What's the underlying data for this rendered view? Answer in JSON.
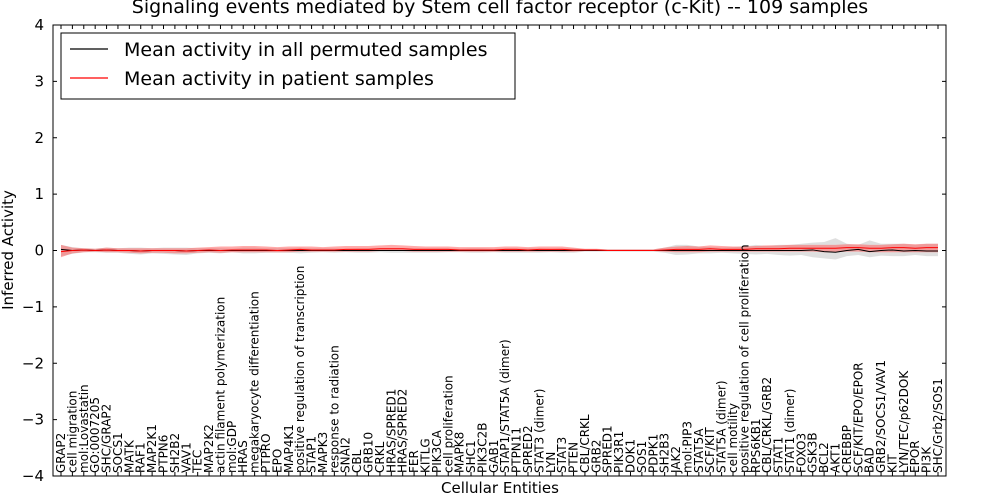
{
  "chart_data": {
    "type": "line",
    "title": "Signaling events mediated by Stem cell factor receptor (c-Kit) -- 109 samples",
    "xlabel": "Cellular Entities",
    "ylabel": "Inferred Activity",
    "ylim": [
      -4,
      4
    ],
    "yticks": [
      -4,
      -3,
      -2,
      -1,
      0,
      1,
      2,
      3,
      4
    ],
    "ytick_labels": [
      "−4",
      "−3",
      "−2",
      "−1",
      "0",
      "1",
      "2",
      "3",
      "4"
    ],
    "legend": {
      "placement": "top-left",
      "entries": [
        {
          "label": "Mean activity in all permuted samples",
          "color": "#000000"
        },
        {
          "label": "Mean activity in patient samples",
          "color": "#ff0000"
        }
      ]
    },
    "categories": [
      "GRAP2",
      "cell migration",
      "mol:Lovastatin",
      "GO:0007205",
      "SHC/GRAP2",
      "SOCS1",
      "MATK",
      "RAF1",
      "MAP2K1",
      "PTPN6",
      "SH2B2",
      "VAV1",
      "TEC",
      "MAP2K2",
      "actin filament polymerization",
      "mol:GDP",
      "HRAS",
      "megakaryocyte differentiation",
      "PTPRO",
      "EPO",
      "MAP4K1",
      "positive regulation of transcription",
      "STAP1",
      "MAPK3",
      "response to radiation",
      "SNAI2",
      "CBL",
      "GRB10",
      "CRKL",
      "HRAS/SPRED1",
      "HRAS/SPRED2",
      "FER",
      "KITLG",
      "PIK3CA",
      "cell proliferation",
      "MAPK8",
      "SHC1",
      "PIK3C2B",
      "GAB1",
      "STAP1/STAT5A (dimer)",
      "PTPN11",
      "SPRED2",
      "STAT3 (dimer)",
      "LYN",
      "STAT3",
      "PTEN",
      "CBL/CRKL",
      "GRB2",
      "SPRED1",
      "PIK3R1",
      "DOK1",
      "SOS1",
      "PDPK1",
      "SH2B3",
      "JAK2",
      "mol:PIP3",
      "STAT5A",
      "SCF/KIT",
      "STAT5A (dimer)",
      "cell motility",
      "positive regulation of cell proliferation",
      "RPS6KB1",
      "CBL/CRKL/GRB2",
      "STAT1",
      "STAT1 (dimer)",
      "FOXO3",
      "GSK3B",
      "BCL2",
      "AKT1",
      "CREBBP",
      "SCF/KIT/EPO/EPOR",
      "BAD",
      "GRB2/SOCS1/VAV1",
      "KIT",
      "LYN/TEC/p62DOK",
      "EPOR",
      "PI3K",
      "SHC/Grb2/SOS1"
    ],
    "series": [
      {
        "name": "Mean activity in all permuted samples",
        "color": "#000000",
        "values": [
          0.02,
          0.0,
          0.01,
          0.0,
          0.01,
          0.0,
          0.0,
          -0.01,
          0.0,
          0.0,
          0.0,
          -0.01,
          0.0,
          0.0,
          0.0,
          0.0,
          0.0,
          0.0,
          0.0,
          0.0,
          0.0,
          0.0,
          0.0,
          0.0,
          0.0,
          0.0,
          0.0,
          0.0,
          0.0,
          0.0,
          0.0,
          0.0,
          0.0,
          0.0,
          0.0,
          0.0,
          0.0,
          0.0,
          0.0,
          0.0,
          0.0,
          0.0,
          0.0,
          0.0,
          0.0,
          0.0,
          0.0,
          0.0,
          0.0,
          0.0,
          0.0,
          0.0,
          0.0,
          0.0,
          0.0,
          0.0,
          0.0,
          0.0,
          0.0,
          0.0,
          0.0,
          0.0,
          0.0,
          0.0,
          0.0,
          0.0,
          0.01,
          -0.02,
          -0.03,
          0.0,
          0.02,
          -0.02,
          0.0,
          0.01,
          -0.01,
          0.0,
          -0.01,
          -0.01
        ],
        "band_low": [
          -0.1,
          -0.06,
          -0.03,
          -0.03,
          -0.04,
          -0.04,
          -0.06,
          -0.07,
          -0.05,
          -0.06,
          -0.07,
          -0.08,
          -0.05,
          -0.04,
          -0.05,
          -0.03,
          -0.05,
          -0.05,
          -0.04,
          -0.04,
          -0.04,
          -0.05,
          -0.04,
          -0.03,
          -0.04,
          -0.03,
          -0.04,
          -0.04,
          -0.03,
          -0.04,
          -0.04,
          -0.04,
          -0.04,
          -0.04,
          -0.03,
          -0.03,
          -0.04,
          -0.04,
          -0.03,
          -0.04,
          -0.04,
          -0.04,
          -0.04,
          -0.03,
          -0.04,
          -0.04,
          -0.02,
          -0.02,
          -0.02,
          -0.02,
          -0.02,
          -0.02,
          -0.02,
          -0.04,
          -0.08,
          -0.07,
          -0.05,
          -0.05,
          -0.04,
          -0.05,
          -0.06,
          -0.07,
          -0.06,
          -0.08,
          -0.09,
          -0.08,
          -0.12,
          -0.14,
          -0.16,
          -0.1,
          -0.08,
          -0.12,
          -0.09,
          -0.1,
          -0.1,
          -0.08,
          -0.1,
          -0.1
        ],
        "band_high": [
          0.1,
          0.06,
          0.04,
          0.03,
          0.05,
          0.04,
          0.05,
          0.05,
          0.04,
          0.05,
          0.05,
          0.05,
          0.04,
          0.04,
          0.04,
          0.03,
          0.05,
          0.05,
          0.04,
          0.04,
          0.04,
          0.05,
          0.04,
          0.04,
          0.04,
          0.03,
          0.04,
          0.04,
          0.04,
          0.04,
          0.04,
          0.04,
          0.04,
          0.04,
          0.04,
          0.03,
          0.04,
          0.04,
          0.03,
          0.04,
          0.04,
          0.04,
          0.04,
          0.03,
          0.04,
          0.04,
          0.02,
          0.02,
          0.02,
          0.02,
          0.02,
          0.02,
          0.02,
          0.05,
          0.1,
          0.1,
          0.07,
          0.06,
          0.05,
          0.06,
          0.07,
          0.1,
          0.08,
          0.1,
          0.1,
          0.12,
          0.14,
          0.15,
          0.22,
          0.12,
          0.1,
          0.18,
          0.12,
          0.12,
          0.12,
          0.1,
          0.12,
          0.12
        ]
      },
      {
        "name": "Mean activity in patient samples",
        "color": "#ff0000",
        "values": [
          -0.02,
          0.0,
          0.01,
          0.0,
          0.01,
          0.0,
          0.0,
          -0.01,
          0.0,
          0.0,
          0.0,
          -0.01,
          0.0,
          0.01,
          0.0,
          0.01,
          0.01,
          0.01,
          0.01,
          0.0,
          0.01,
          0.02,
          0.01,
          0.01,
          0.01,
          0.02,
          0.02,
          0.02,
          0.03,
          0.03,
          0.03,
          0.02,
          0.02,
          0.02,
          0.02,
          0.01,
          0.01,
          0.01,
          0.01,
          0.02,
          0.02,
          0.01,
          0.02,
          0.02,
          0.02,
          0.01,
          0.01,
          0.01,
          0.0,
          0.0,
          0.0,
          0.0,
          0.0,
          0.01,
          0.02,
          0.02,
          0.02,
          0.03,
          0.02,
          0.02,
          0.02,
          0.03,
          0.03,
          0.03,
          0.04,
          0.04,
          0.04,
          0.04,
          0.04,
          0.05,
          0.05,
          0.04,
          0.04,
          0.05,
          0.05,
          0.04,
          0.05,
          0.05
        ],
        "band_low": [
          -0.12,
          -0.05,
          -0.03,
          -0.02,
          -0.03,
          -0.03,
          -0.04,
          -0.05,
          -0.04,
          -0.04,
          -0.05,
          -0.05,
          -0.04,
          -0.03,
          -0.04,
          -0.03,
          -0.03,
          -0.03,
          -0.03,
          -0.03,
          -0.03,
          -0.02,
          -0.02,
          -0.02,
          -0.02,
          -0.02,
          -0.02,
          -0.02,
          -0.01,
          -0.01,
          -0.01,
          -0.02,
          -0.02,
          -0.02,
          -0.02,
          -0.02,
          -0.02,
          -0.02,
          -0.02,
          -0.02,
          -0.02,
          -0.02,
          -0.02,
          -0.02,
          -0.02,
          -0.02,
          -0.01,
          -0.01,
          -0.01,
          -0.01,
          -0.01,
          -0.01,
          -0.01,
          -0.02,
          -0.03,
          -0.03,
          -0.03,
          -0.02,
          -0.02,
          -0.02,
          -0.02,
          -0.02,
          -0.02,
          -0.02,
          -0.02,
          -0.02,
          -0.02,
          -0.03,
          -0.03,
          -0.02,
          -0.02,
          -0.03,
          -0.03,
          -0.03,
          -0.03,
          -0.03,
          -0.03,
          -0.03
        ],
        "band_high": [
          0.1,
          0.05,
          0.04,
          0.03,
          0.05,
          0.04,
          0.04,
          0.04,
          0.04,
          0.04,
          0.04,
          0.04,
          0.05,
          0.06,
          0.07,
          0.07,
          0.08,
          0.08,
          0.07,
          0.06,
          0.07,
          0.07,
          0.07,
          0.06,
          0.07,
          0.08,
          0.08,
          0.08,
          0.09,
          0.1,
          0.09,
          0.08,
          0.07,
          0.07,
          0.07,
          0.06,
          0.06,
          0.06,
          0.06,
          0.07,
          0.07,
          0.06,
          0.07,
          0.07,
          0.07,
          0.05,
          0.03,
          0.03,
          0.02,
          0.02,
          0.02,
          0.02,
          0.02,
          0.05,
          0.07,
          0.08,
          0.07,
          0.09,
          0.08,
          0.07,
          0.07,
          0.08,
          0.09,
          0.09,
          0.1,
          0.1,
          0.1,
          0.1,
          0.1,
          0.11,
          0.11,
          0.1,
          0.1,
          0.11,
          0.12,
          0.11,
          0.12,
          0.12
        ]
      }
    ]
  }
}
